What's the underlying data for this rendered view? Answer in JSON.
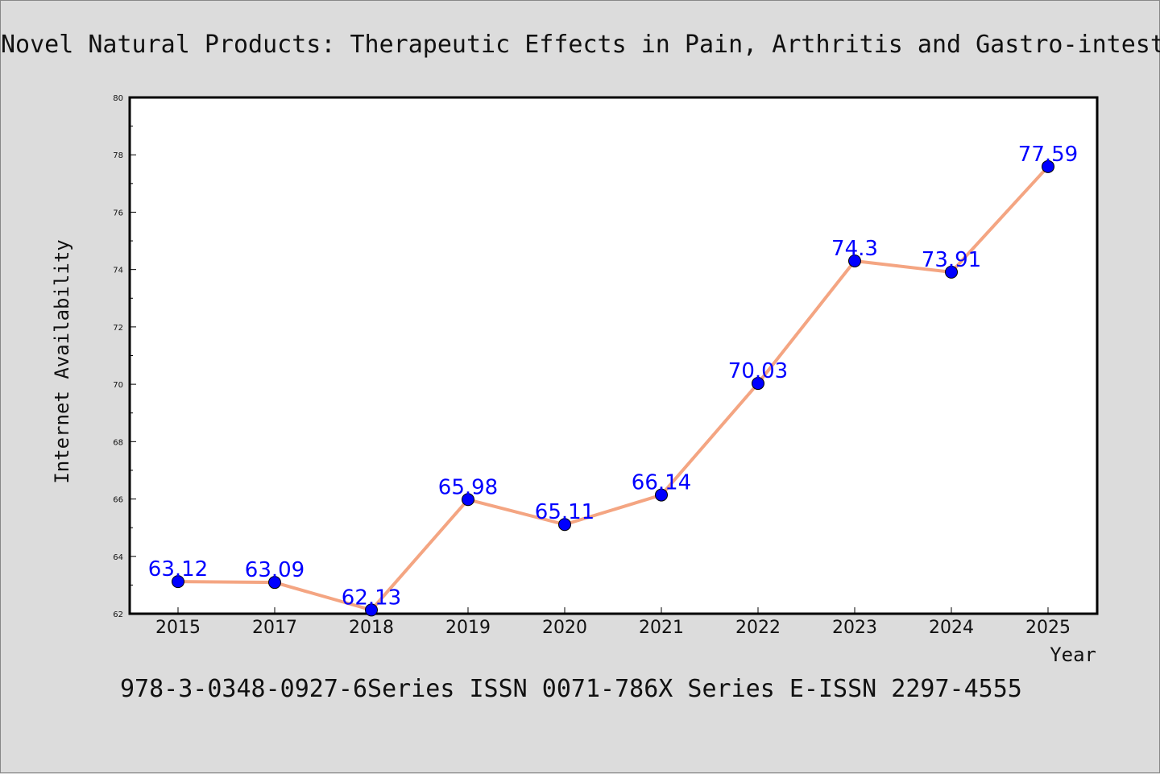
{
  "chart_data": {
    "type": "line",
    "title": "Novel Natural Products: Therapeutic Effects in Pain, Arthritis and Gastro-intestinal Diseases",
    "xlabel": "Year",
    "ylabel": "Internet Availability",
    "footer": "978-3-0348-0927-6Series ISSN 0071-786X Series E-ISSN 2297-4555",
    "categories": [
      "2015",
      "2017",
      "2018",
      "2019",
      "2020",
      "2021",
      "2022",
      "2023",
      "2024",
      "2025"
    ],
    "series": [
      {
        "values": [
          63.12,
          63.09,
          62.13,
          65.98,
          65.11,
          66.14,
          70.03,
          74.3,
          73.91,
          77.59
        ]
      }
    ],
    "data_labels": [
      "63.12",
      "63.09",
      "62.13",
      "65.98",
      "65.11",
      "66.14",
      "70.03",
      "74.3",
      "73.91",
      "77.59"
    ],
    "ylim": [
      62,
      80
    ],
    "yticks": [
      62,
      64,
      66,
      68,
      70,
      72,
      74,
      76,
      78,
      80
    ],
    "grid": false,
    "colors": {
      "line": "#f4a582",
      "marker": "#0000ff",
      "label": "#0000ff",
      "background": "#dcdcdc",
      "plot_background": "#ffffff"
    }
  }
}
